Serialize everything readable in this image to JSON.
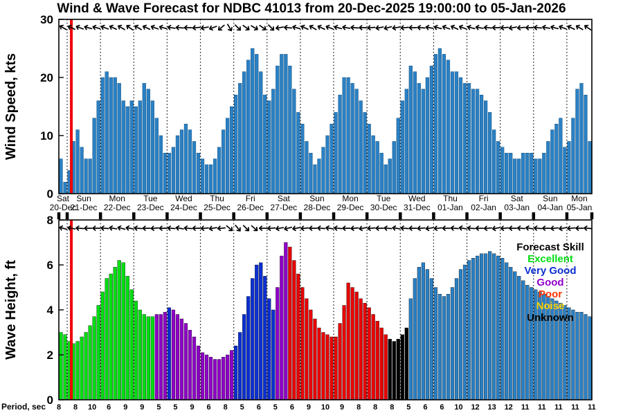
{
  "title": "Wind & Wave Forecast for NDBC 41013 from 20-Dec-2025 19:00:00 to 05-Jan-2026",
  "colors": {
    "wind_bar": "#2a80c4",
    "now_line": "#f00000",
    "ex": "#00dd11",
    "vg": "#0b2fd0",
    "gd": "#8f00c7",
    "pr": "#e60000",
    "no": "#ffd400",
    "un": "#000000",
    "fb": "#2a80c4"
  },
  "axis": {
    "day_names": [
      "Sat",
      "Sun",
      "Mon",
      "Tue",
      "Wed",
      "Thu",
      "Fri",
      "Sat",
      "Sun",
      "Mon",
      "Tue",
      "Wed",
      "Thu",
      "Fri",
      "Sat",
      "Sun",
      "Mon"
    ],
    "day_dates": [
      "20-Dec",
      "21-Dec",
      "22-Dec",
      "23-Dec",
      "24-Dec",
      "25-Dec",
      "26-Dec",
      "27-Dec",
      "28-Dec",
      "29-Dec",
      "30-Dec",
      "31-Dec",
      "01-Jan",
      "02-Jan",
      "03-Jan",
      "04-Jan",
      "05-Jan"
    ],
    "bars_per_day": [
      2,
      8,
      8,
      8,
      8,
      8,
      8,
      8,
      8,
      8,
      8,
      8,
      8,
      8,
      8,
      8,
      6
    ],
    "now_bar_index": 3
  },
  "chart_data": [
    {
      "type": "bar",
      "name": "wind-speed",
      "ylabel": "Wind Speed, kts",
      "ylim": [
        0,
        30
      ],
      "yticks": [
        0,
        10,
        20,
        30
      ],
      "values": [
        6,
        2,
        4,
        9,
        11,
        8,
        6,
        6,
        13,
        16,
        20,
        21,
        20,
        20,
        19,
        16,
        15,
        16,
        15,
        16,
        19,
        18,
        16,
        13,
        10,
        7,
        7,
        8,
        10,
        11,
        12,
        11,
        9,
        7,
        6,
        5,
        5,
        6,
        8,
        11,
        13,
        15,
        17,
        19,
        21,
        23,
        25,
        24,
        21,
        17,
        16,
        18,
        22,
        24,
        24,
        22,
        18,
        14,
        12,
        9,
        7,
        5,
        6,
        8,
        10,
        12,
        14,
        17,
        20,
        20,
        19,
        18,
        16,
        14,
        12,
        10,
        9,
        7,
        5,
        6,
        9,
        13,
        16,
        18,
        22,
        21,
        19,
        18,
        20,
        22,
        24,
        25,
        24,
        23,
        21,
        21,
        20,
        19,
        19,
        18,
        18,
        17,
        16,
        14,
        11,
        9,
        8,
        7,
        7,
        6,
        6,
        7,
        7,
        7,
        6,
        6,
        7,
        9,
        11,
        12,
        13,
        8,
        9,
        13,
        18,
        19,
        17,
        9
      ],
      "arrows_deg": [
        210,
        205,
        200,
        195,
        195,
        200,
        205,
        210,
        215,
        210,
        205,
        200,
        195,
        190,
        185,
        180,
        175,
        170,
        160,
        140,
        60,
        45,
        35,
        30,
        35,
        45,
        170,
        185,
        195,
        205,
        210,
        205,
        200,
        195,
        190,
        185,
        180,
        175,
        170,
        165,
        170,
        175,
        180,
        185,
        190,
        195,
        200,
        205,
        200,
        195,
        190,
        185,
        180,
        175,
        170,
        175,
        180,
        185,
        190,
        195,
        200,
        205,
        210,
        215
      ]
    },
    {
      "type": "bar",
      "name": "wave-height",
      "ylabel": "Wave Height, ft",
      "ylim": [
        0,
        8
      ],
      "yticks": [
        0,
        2,
        4,
        6,
        8
      ],
      "heights": [
        3.0,
        2.9,
        2.6,
        2.5,
        2.6,
        2.8,
        3.0,
        3.3,
        3.7,
        4.2,
        4.8,
        5.4,
        5.6,
        5.9,
        6.2,
        6.1,
        5.5,
        4.9,
        4.4,
        4.0,
        3.8,
        3.7,
        3.7,
        3.8,
        3.8,
        3.9,
        4.1,
        4.0,
        3.8,
        3.6,
        3.4,
        3.1,
        2.8,
        2.4,
        2.1,
        2.0,
        1.9,
        1.8,
        1.8,
        1.9,
        2.0,
        2.2,
        2.4,
        3.0,
        3.8,
        4.6,
        5.4,
        6.0,
        6.1,
        5.5,
        4.5,
        4.0,
        5.0,
        6.4,
        7.0,
        6.8,
        6.2,
        5.6,
        5.0,
        4.5,
        4.0,
        3.6,
        3.2,
        3.0,
        2.9,
        2.8,
        2.8,
        3.4,
        4.2,
        5.2,
        5.0,
        4.8,
        4.5,
        4.3,
        4.1,
        3.8,
        3.5,
        3.2,
        2.9,
        2.7,
        2.6,
        2.7,
        2.9,
        3.2,
        4.5,
        5.4,
        5.9,
        6.1,
        5.8,
        5.4,
        5.0,
        4.7,
        4.6,
        4.7,
        5.0,
        5.4,
        5.8,
        6.0,
        6.2,
        6.3,
        6.4,
        6.5,
        6.5,
        6.6,
        6.5,
        6.4,
        6.3,
        6.1,
        5.9,
        5.7,
        5.5,
        5.3,
        5.1,
        5.0,
        4.9,
        4.8,
        4.7,
        4.6,
        4.5,
        4.4,
        4.3,
        4.2,
        4.1,
        4.0,
        3.9,
        3.9,
        3.8,
        3.7
      ],
      "skill_runs": [
        [
          "ex",
          23
        ],
        [
          "gd",
          3
        ],
        [
          "vg",
          1
        ],
        [
          "gd",
          15
        ],
        [
          "vg",
          10
        ],
        [
          "gd",
          3
        ],
        [
          "pr",
          24
        ],
        [
          "un",
          5
        ],
        [
          "fb",
          44
        ]
      ],
      "arrows_deg": [
        195,
        190,
        185,
        180,
        180,
        185,
        190,
        195,
        190,
        185,
        180,
        175,
        180,
        185,
        190,
        185,
        180,
        175,
        170,
        175,
        40,
        50,
        45,
        40,
        180,
        175,
        170,
        165,
        170,
        175,
        180,
        185,
        190,
        185,
        180,
        175,
        170,
        175,
        180,
        185,
        190,
        185,
        180,
        175,
        170,
        175,
        180,
        185,
        190,
        185,
        180,
        175,
        170,
        175,
        180,
        185,
        190,
        185,
        180,
        175,
        170,
        175,
        180,
        185
      ],
      "legend": {
        "title": "Forecast Skill",
        "entries": [
          {
            "label": "Excellent",
            "color": "#00dd11"
          },
          {
            "label": "Very Good",
            "color": "#0b2fd0"
          },
          {
            "label": "Good",
            "color": "#8f00c7"
          },
          {
            "label": "Poor",
            "color": "#ff3300"
          },
          {
            "label": "Noise",
            "color": "#ffd400"
          },
          {
            "label": "Unknown",
            "color": "#000000"
          }
        ]
      },
      "period_label": "Period, sec",
      "periods": [
        8,
        8,
        10,
        6,
        9,
        9,
        5,
        5,
        9,
        6,
        8,
        5,
        6,
        5,
        6,
        9,
        10,
        9,
        8,
        8,
        8,
        5,
        6,
        6,
        10,
        12,
        13,
        12,
        11,
        11,
        11,
        11,
        11
      ]
    }
  ]
}
